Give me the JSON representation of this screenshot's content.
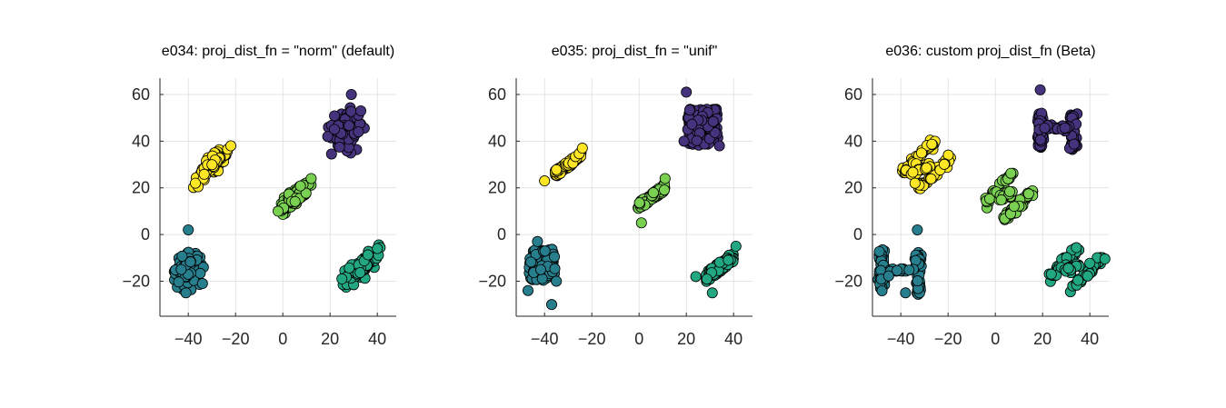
{
  "chart_data": [
    {
      "type": "scatter",
      "title": "e034: proj_dist_fn = \"norm\" (default)",
      "xlim": [
        -52,
        48
      ],
      "ylim": [
        -35,
        67
      ],
      "xticks": [
        -40,
        -20,
        0,
        20,
        40
      ],
      "yticks": [
        -20,
        0,
        20,
        40,
        60
      ],
      "grid": true,
      "clusters": [
        {
          "color": "#46337e",
          "kind": "gauss",
          "center": [
            27,
            45
          ],
          "spread": [
            3.2,
            3.8
          ],
          "count": 120,
          "outliers": [
            [
              29,
              60
            ],
            [
              19,
              42
            ],
            [
              33,
              53
            ],
            [
              32,
              44
            ]
          ]
        },
        {
          "color": "#fde725",
          "kind": "gauss_corr",
          "center": [
            -30,
            30
          ],
          "spread": [
            3.0,
            3.0
          ],
          "corr": 0.85,
          "count": 110,
          "outliers": [
            [
              -37,
              22
            ],
            [
              -22,
              38
            ]
          ]
        },
        {
          "color": "#7ad151",
          "kind": "gauss_corr",
          "center": [
            5,
            16
          ],
          "spread": [
            3.2,
            3.2
          ],
          "corr": 0.85,
          "count": 110,
          "outliers": [
            [
              -2,
              10
            ],
            [
              12,
              24
            ]
          ]
        },
        {
          "color": "#277f8e",
          "kind": "gauss",
          "center": [
            -40,
            -15
          ],
          "spread": [
            2.5,
            3.3
          ],
          "count": 120,
          "outliers": [
            [
              -40,
              2
            ],
            [
              -41,
              -25
            ],
            [
              -34,
              -21
            ]
          ]
        },
        {
          "color": "#21a883",
          "kind": "gauss_corr",
          "center": [
            33,
            -14
          ],
          "spread": [
            3.5,
            3.5
          ],
          "corr": 0.8,
          "count": 110,
          "outliers": [
            [
              25,
              -19
            ],
            [
              40,
              -6
            ]
          ]
        }
      ]
    },
    {
      "type": "scatter",
      "title": "e035: proj_dist_fn = \"unif\"",
      "xlim": [
        -52,
        48
      ],
      "ylim": [
        -35,
        67
      ],
      "xticks": [
        -40,
        -20,
        0,
        20,
        40
      ],
      "yticks": [
        -20,
        0,
        20,
        40,
        60
      ],
      "grid": true,
      "clusters": [
        {
          "color": "#46337e",
          "kind": "unif",
          "center": [
            27,
            46
          ],
          "spread": [
            6.5,
            5.5
          ],
          "count": 130,
          "outliers": [
            [
              20,
              61
            ],
            [
              19,
              40
            ],
            [
              34,
              38
            ]
          ]
        },
        {
          "color": "#fde725",
          "kind": "unif_corr",
          "center": [
            -30,
            30
          ],
          "spread": [
            5.5,
            5.0
          ],
          "corr": 0.8,
          "count": 120,
          "outliers": [
            [
              -40,
              23
            ],
            [
              -24,
              37
            ]
          ]
        },
        {
          "color": "#7ad151",
          "kind": "unif_corr",
          "center": [
            5,
            16
          ],
          "spread": [
            6.0,
            5.5
          ],
          "corr": 0.8,
          "count": 120,
          "outliers": [
            [
              1,
              5
            ],
            [
              11,
              24
            ]
          ]
        },
        {
          "color": "#277f8e",
          "kind": "unif",
          "center": [
            -41,
            -13
          ],
          "spread": [
            5.5,
            4.8
          ],
          "count": 130,
          "outliers": [
            [
              -43,
              -3
            ],
            [
              -47,
              -24
            ],
            [
              -37,
              -30
            ],
            [
              -35,
              -20
            ]
          ]
        },
        {
          "color": "#21a883",
          "kind": "unif_corr",
          "center": [
            34,
            -14
          ],
          "spread": [
            6.0,
            6.0
          ],
          "corr": 0.75,
          "count": 120,
          "outliers": [
            [
              24,
              -18
            ],
            [
              31,
              -25
            ],
            [
              41,
              -5
            ]
          ]
        }
      ]
    },
    {
      "type": "scatter",
      "title": "e036: custom proj_dist_fn (Beta)",
      "xlim": [
        -52,
        48
      ],
      "ylim": [
        -35,
        67
      ],
      "xticks": [
        -40,
        -20,
        0,
        20,
        40
      ],
      "yticks": [
        -20,
        0,
        20,
        40,
        60
      ],
      "grid": true,
      "clusters": [
        {
          "color": "#46337e",
          "kind": "beta_bands",
          "bands": [
            [
              [
                19,
                37
              ],
              [
                19,
                52
              ]
            ],
            [
              [
                33,
                37
              ],
              [
                33,
                52
              ]
            ]
          ],
          "bridge": [
            [
              21,
              45
            ],
            [
              31,
              46
            ]
          ],
          "count": 110,
          "outliers": [
            [
              19,
              62
            ]
          ]
        },
        {
          "color": "#fde725",
          "kind": "beta_bands",
          "bands": [
            [
              [
                -40,
                26
              ],
              [
                -25,
                40
              ]
            ],
            [
              [
                -33,
                19
              ],
              [
                -19,
                33
              ]
            ]
          ],
          "bridge": [
            [
              -35,
              26
            ],
            [
              -28,
              30
            ]
          ],
          "count": 100,
          "outliers": [
            [
              -34,
              22
            ]
          ]
        },
        {
          "color": "#7ad151",
          "kind": "beta_bands",
          "bands": [
            [
              [
                -5,
                12
              ],
              [
                7,
                26
              ]
            ],
            [
              [
                4,
                7
              ],
              [
                16,
                19
              ]
            ]
          ],
          "bridge": [
            [
              1,
              15
            ],
            [
              8,
              18
            ]
          ],
          "count": 100,
          "outliers": []
        },
        {
          "color": "#277f8e",
          "kind": "beta_bands",
          "bands": [
            [
              [
                -48,
                -23
              ],
              [
                -48,
                -8
              ]
            ],
            [
              [
                -33,
                -25
              ],
              [
                -33,
                -8
              ]
            ]
          ],
          "bridge": [
            [
              -46,
              -16
            ],
            [
              -35,
              -15
            ]
          ],
          "count": 110,
          "outliers": [
            [
              -33,
              2
            ],
            [
              -38,
              -25
            ]
          ]
        },
        {
          "color": "#21a883",
          "kind": "beta_bands",
          "bands": [
            [
              [
                23,
                -19
              ],
              [
                35,
                -5
              ]
            ],
            [
              [
                32,
                -24
              ],
              [
                45,
                -10
              ]
            ]
          ],
          "bridge": [
            [
              29,
              -15
            ],
            [
              36,
              -13
            ]
          ],
          "count": 100,
          "outliers": []
        }
      ]
    }
  ]
}
